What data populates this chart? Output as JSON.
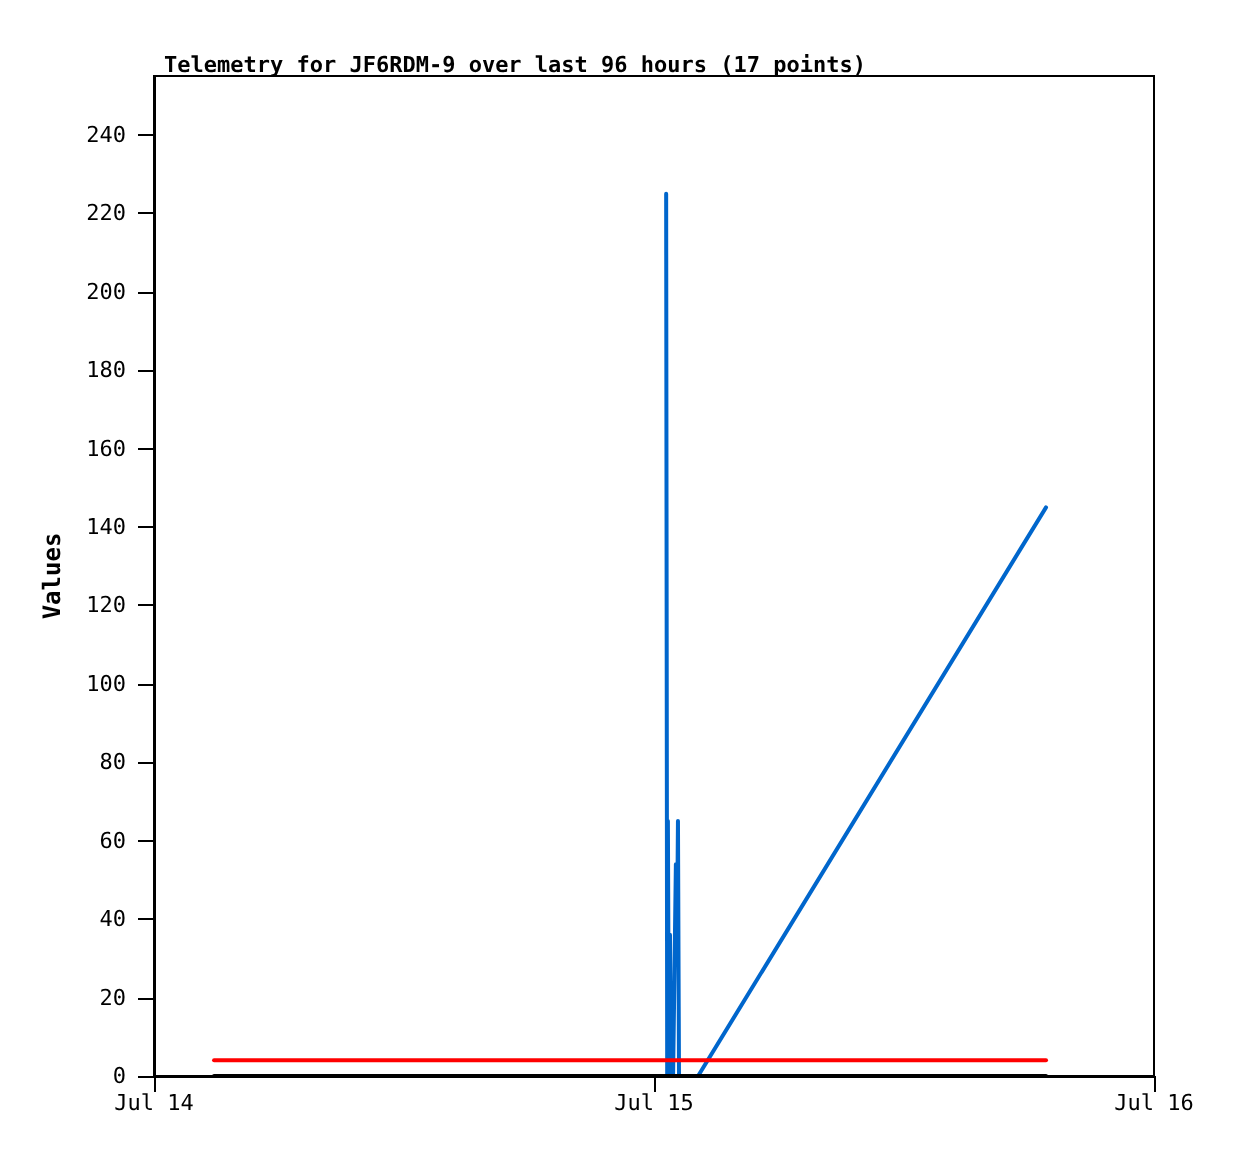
{
  "chart_data": {
    "type": "line",
    "title": "Telemetry for JF6RDM-9 over last 96 hours (17 points)",
    "ylabel": "Values",
    "xlim": [
      "--07-14",
      "--07-16"
    ],
    "xticks": [
      {
        "value": "--07-14",
        "label": "Jul 14"
      },
      {
        "value": "--07-15",
        "label": "Jul 15"
      },
      {
        "value": "--07-16",
        "label": "Jul 16"
      }
    ],
    "ylim": [
      0,
      255
    ],
    "yticks": [
      0,
      20,
      40,
      60,
      80,
      100,
      120,
      140,
      160,
      180,
      200,
      220,
      240
    ],
    "grid": false,
    "marker": "none",
    "line_style": "solid",
    "series": [
      {
        "color": "#0066cc",
        "x": [
          "--07-15T00:35",
          "--07-15T00:38",
          "--07-15T00:40",
          "--07-15T00:43",
          "--07-15T00:46",
          "--07-15T00:49",
          "--07-15T00:52",
          "--07-15T00:55",
          "--07-15T01:03",
          "--07-15T01:06",
          "--07-15T01:09",
          "--07-15T01:12",
          "--07-15T02:07",
          "--07-15T18:49"
        ],
        "values": [
          225,
          0,
          65,
          0,
          36,
          0,
          12,
          0,
          54,
          32,
          65,
          0,
          0,
          145
        ]
      },
      {
        "color": "#ff0000",
        "x": [
          "--07-14T02:53",
          "--07-15T18:49"
        ],
        "values": [
          4,
          4
        ]
      },
      {
        "color": "#000000",
        "x": [
          "--07-14T02:53",
          "--07-15T18:49"
        ],
        "values": [
          0,
          0
        ]
      }
    ]
  }
}
